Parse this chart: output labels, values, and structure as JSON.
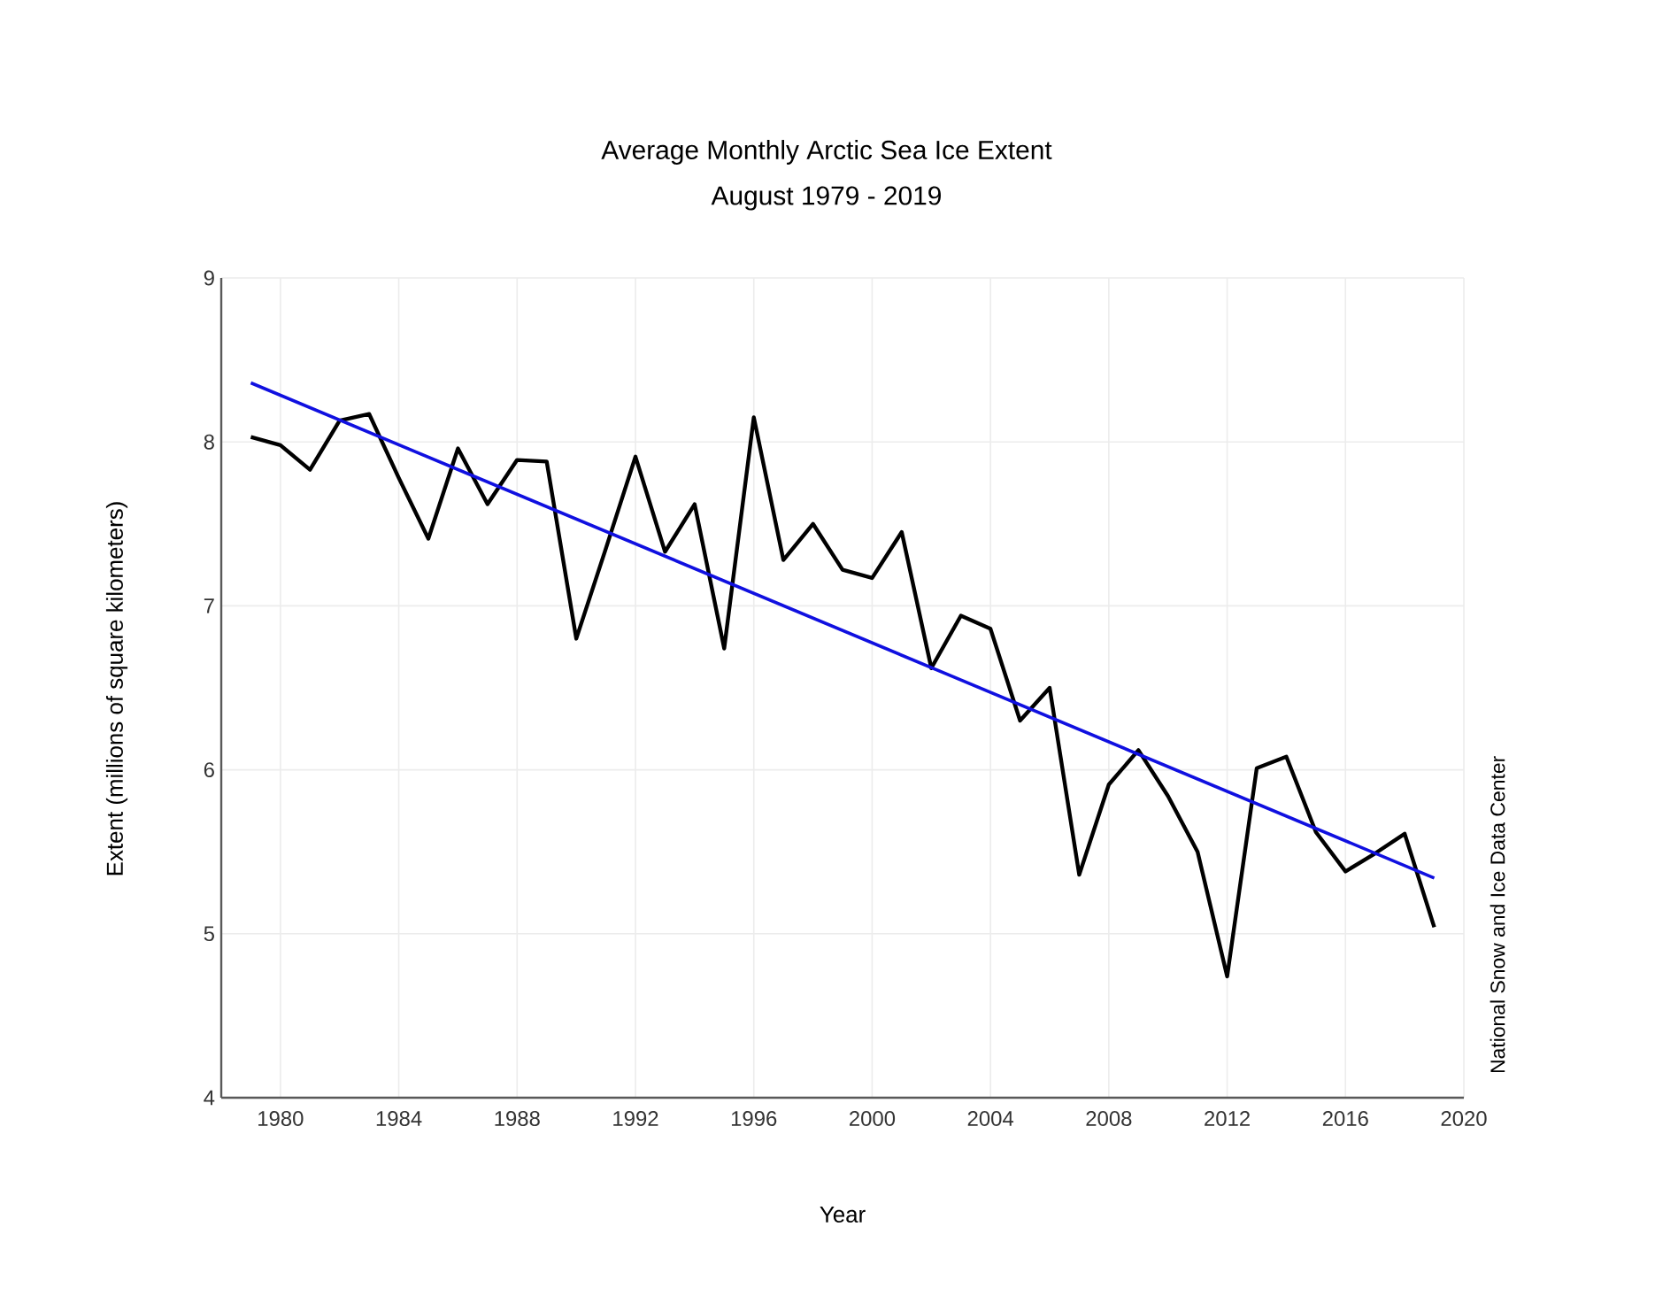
{
  "chart_data": {
    "type": "line",
    "title": "Average Monthly Arctic Sea Ice Extent",
    "subtitle": "August 1979 - 2019",
    "xlabel": "Year",
    "ylabel": "Extent (millions of square kilometers)",
    "annotations": [
      "National Snow and Ice Data Center"
    ],
    "x": [
      1979,
      1980,
      1981,
      1982,
      1983,
      1984,
      1985,
      1986,
      1987,
      1988,
      1989,
      1990,
      1991,
      1992,
      1993,
      1994,
      1995,
      1996,
      1997,
      1998,
      1999,
      2000,
      2001,
      2002,
      2003,
      2004,
      2005,
      2006,
      2007,
      2008,
      2009,
      2010,
      2011,
      2012,
      2013,
      2014,
      2015,
      2016,
      2017,
      2018,
      2019
    ],
    "series": [
      {
        "color": "#000000",
        "values": [
          8.03,
          7.98,
          7.83,
          8.13,
          8.17,
          7.78,
          7.41,
          7.96,
          7.62,
          7.89,
          7.88,
          6.8,
          7.35,
          7.91,
          7.33,
          7.62,
          6.74,
          8.15,
          7.28,
          7.5,
          7.22,
          7.17,
          7.45,
          6.62,
          6.94,
          6.86,
          6.3,
          6.5,
          5.36,
          5.91,
          6.12,
          5.84,
          5.5,
          4.74,
          6.01,
          6.08,
          5.62,
          5.38,
          5.49,
          5.61,
          5.04
        ]
      },
      {
        "type": "line",
        "color": "#1010e0",
        "x": [
          1979,
          2019
        ],
        "values": [
          8.36,
          5.34
        ]
      }
    ],
    "xlim": [
      1978,
      2020
    ],
    "xticks": [
      1980,
      1984,
      1988,
      1992,
      1996,
      2000,
      2004,
      2008,
      2012,
      2016,
      2020
    ],
    "ylim": [
      4,
      9
    ],
    "yticks": [
      4,
      5,
      6,
      7,
      8,
      9
    ],
    "grid": true,
    "marker": "none",
    "line_style": "solid"
  }
}
